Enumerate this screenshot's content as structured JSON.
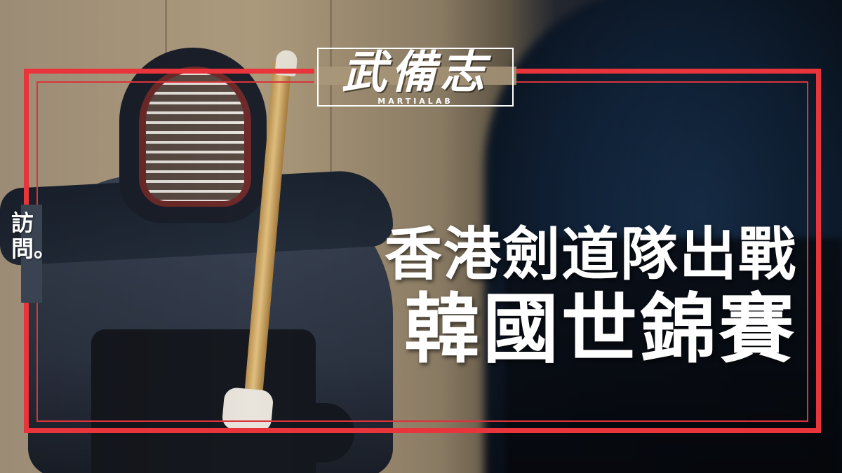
{
  "logo": {
    "main": "武備志",
    "sub": "MARTIALAB"
  },
  "side_label": {
    "chars": [
      "訪",
      "問。"
    ]
  },
  "headline": {
    "line1": "香港劍道隊出戰",
    "line2": "韓國世錦賽"
  },
  "colors": {
    "frame_red": "#e8343a",
    "text_white": "#ffffff"
  }
}
